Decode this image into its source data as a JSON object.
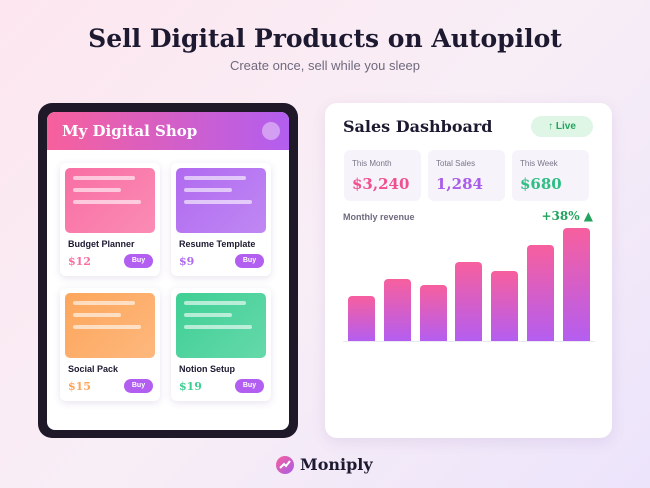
{
  "header": {
    "title": "Sell Digital Products on Autopilot",
    "subtitle": "Create once, sell while you sleep"
  },
  "shop": {
    "title": "My Digital Shop",
    "products": [
      {
        "name": "Budget Planner",
        "price": "$12",
        "button": "Buy",
        "color": "#f96fa3"
      },
      {
        "name": "Resume Template",
        "price": "$9",
        "button": "Buy",
        "color": "#b06af0"
      },
      {
        "name": "Social Pack",
        "price": "$15",
        "button": "Buy",
        "color": "#fda65c"
      },
      {
        "name": "Notion Setup",
        "price": "$19",
        "button": "Buy",
        "color": "#3fcf95"
      }
    ]
  },
  "dashboard": {
    "title": "Sales Dashboard",
    "badge": "↑ Live",
    "stats": [
      {
        "label": "This Month",
        "value": "$3,240",
        "color": "#f0508f"
      },
      {
        "label": "Total Sales",
        "value": "1,284",
        "color": "#a85ce8"
      },
      {
        "label": "This Week",
        "value": "$680",
        "color": "#2fbf85"
      }
    ],
    "chart_label": "Monthly revenue",
    "change": "+38% ▲",
    "bars": [
      45,
      62,
      56,
      79,
      70,
      96,
      113
    ]
  },
  "brand": {
    "name": "Moniply"
  }
}
